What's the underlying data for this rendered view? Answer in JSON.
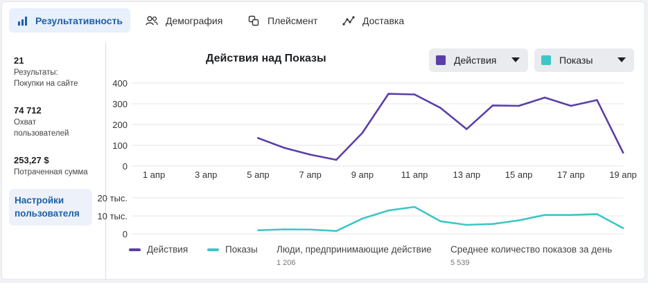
{
  "tabs": [
    {
      "label": "Результативность",
      "icon": "bar-chart-icon",
      "active": true
    },
    {
      "label": "Демография",
      "icon": "people-icon",
      "active": false
    },
    {
      "label": "Плейсмент",
      "icon": "placement-icon",
      "active": false
    },
    {
      "label": "Доставка",
      "icon": "delivery-icon",
      "active": false
    }
  ],
  "metrics": [
    {
      "value": "21",
      "label": "Результаты: Покупки на сайте"
    },
    {
      "value": "74 712",
      "label": "Охват пользователей"
    },
    {
      "value": "253,27 $",
      "label": "Потраченная сумма"
    }
  ],
  "settings_label": "Настройки пользователя",
  "dropdowns": {
    "metric1": {
      "label": "Действия",
      "color": "#5b3ea8"
    },
    "metric2": {
      "label": "Показы",
      "color": "#3ec6c6"
    }
  },
  "legend": [
    {
      "label": "Действия",
      "color": "#5b3ea8"
    },
    {
      "label": "Показы",
      "color": "#3ec6c6"
    }
  ],
  "stats": [
    {
      "label": "Люди, предпринимающие действие",
      "value": "1 206"
    },
    {
      "label": "Среднее количество показов за день",
      "value": "5 539"
    }
  ],
  "chart_data": [
    {
      "type": "line",
      "title": "Действия над Показы",
      "ylim": [
        0,
        400
      ],
      "yticks": [
        "0",
        "100",
        "200",
        "300",
        "400"
      ],
      "xtick_labels": [
        "1 апр",
        "3 апр",
        "5 апр",
        "7 апр",
        "9 апр",
        "11 апр",
        "13 апр",
        "15 апр",
        "17 апр",
        "19 апр"
      ],
      "xtick_days": [
        1,
        3,
        5,
        7,
        9,
        11,
        13,
        15,
        17,
        19
      ],
      "grid": true,
      "series": [
        {
          "name": "Действия",
          "color": "#5b3ea8",
          "x": [
            5,
            6,
            7,
            8,
            9,
            10,
            11,
            12,
            13,
            14,
            15,
            16,
            17,
            18,
            19
          ],
          "values": [
            135,
            88,
            55,
            30,
            160,
            348,
            345,
            280,
            178,
            292,
            290,
            330,
            290,
            318,
            65
          ]
        }
      ]
    },
    {
      "type": "line",
      "ylim": [
        0,
        20000
      ],
      "yticks": [
        "0",
        "10 тыс.",
        "20 тыс."
      ],
      "grid": true,
      "series": [
        {
          "name": "Показы",
          "color": "#3ec6c6",
          "x": [
            5,
            6,
            7,
            8,
            9,
            10,
            11,
            12,
            13,
            14,
            15,
            16,
            17,
            18,
            19
          ],
          "values": [
            2000,
            2500,
            2400,
            1600,
            8500,
            13000,
            15000,
            7000,
            5000,
            5500,
            7500,
            10500,
            10500,
            11000,
            3200
          ]
        }
      ]
    }
  ]
}
